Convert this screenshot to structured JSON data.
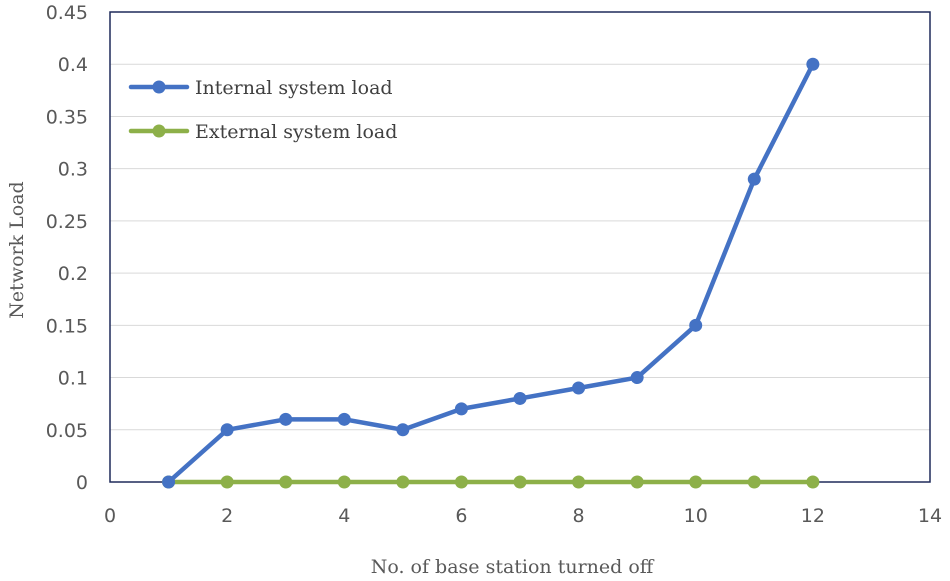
{
  "chart_data": {
    "type": "line",
    "title": "",
    "xlabel": "No. of base station turned  off",
    "ylabel": "Network  Load",
    "xlim": [
      0,
      14
    ],
    "ylim": [
      0,
      0.45
    ],
    "x_ticks": [
      "0",
      "2",
      "4",
      "6",
      "8",
      "10",
      "12",
      "14"
    ],
    "y_ticks": [
      "0",
      "0.05",
      "0.1",
      "0.15",
      "0.2",
      "0.25",
      "0.3",
      "0.35",
      "0.4",
      "0.45"
    ],
    "grid": true,
    "legend_position": "top-left",
    "series": [
      {
        "name": "Internal system load",
        "color": "#4472C4",
        "x": [
          1,
          2,
          3,
          4,
          5,
          6,
          7,
          8,
          9,
          10,
          11,
          12
        ],
        "values": [
          0,
          0.05,
          0.06,
          0.06,
          0.05,
          0.07,
          0.08,
          0.09,
          0.1,
          0.15,
          0.29,
          0.4
        ]
      },
      {
        "name": "External system load",
        "color": "#8DB049",
        "x": [
          1,
          2,
          3,
          4,
          5,
          6,
          7,
          8,
          9,
          10,
          11,
          12
        ],
        "values": [
          0,
          0,
          0,
          0,
          0,
          0,
          0,
          0,
          0,
          0,
          0,
          0
        ]
      }
    ]
  }
}
